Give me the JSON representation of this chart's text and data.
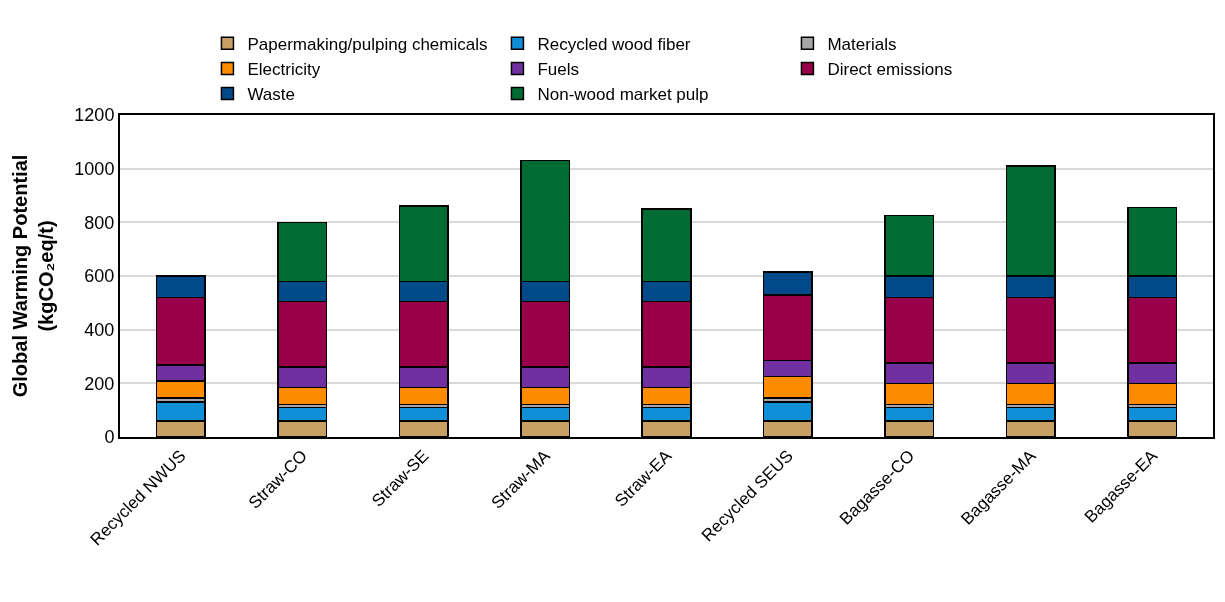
{
  "chart_data": {
    "type": "bar",
    "stacked": true,
    "ylabel": "Global Warming Potential\n(kgCO₂eq/t)",
    "categories": [
      "Recycled NWUS",
      "Straw-CO",
      "Straw-SE",
      "Straw-MA",
      "Straw-EA",
      "Recycled SEUS",
      "Bagasse-CO",
      "Bagasse-MA",
      "Bagasse-EA"
    ],
    "series": [
      {
        "name": "Papermaking/pulping chemicals",
        "color": "#c8a064",
        "values": [
          60,
          60,
          60,
          60,
          60,
          60,
          60,
          60,
          60
        ]
      },
      {
        "name": "Recycled wood fiber",
        "color": "#0f8fd6",
        "values": [
          70,
          50,
          50,
          50,
          50,
          70,
          50,
          50,
          50
        ]
      },
      {
        "name": "Materials",
        "color": "#a6a6a6",
        "values": [
          15,
          12,
          12,
          12,
          12,
          15,
          12,
          12,
          12
        ]
      },
      {
        "name": "Electricity",
        "color": "#ff8c00",
        "values": [
          63,
          63,
          63,
          63,
          63,
          80,
          78,
          78,
          78
        ]
      },
      {
        "name": "Fuels",
        "color": "#7030a0",
        "values": [
          60,
          75,
          75,
          75,
          75,
          60,
          75,
          75,
          75
        ]
      },
      {
        "name": "Direct emissions",
        "color": "#990049",
        "values": [
          252,
          245,
          245,
          245,
          245,
          245,
          245,
          245,
          245
        ]
      },
      {
        "name": "Waste",
        "color": "#004a8a",
        "values": [
          80,
          75,
          75,
          75,
          75,
          85,
          80,
          80,
          80
        ]
      },
      {
        "name": "Non-wood market pulp",
        "color": "#006b33",
        "values": [
          null,
          220,
          280,
          450,
          270,
          null,
          225,
          410,
          255
        ]
      }
    ],
    "ylim": [
      0,
      1200
    ],
    "yticks": [
      0,
      200,
      400,
      600,
      800,
      1000,
      1200
    ],
    "grid": "y",
    "legend": "top"
  }
}
